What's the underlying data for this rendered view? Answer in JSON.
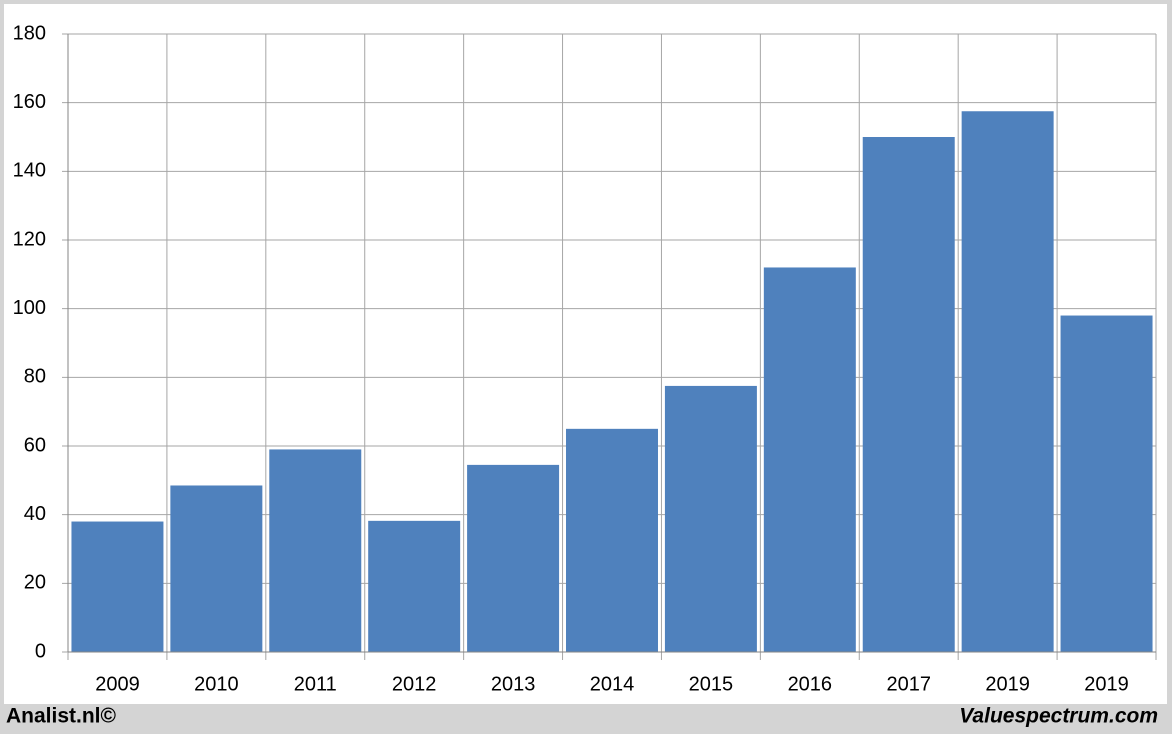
{
  "chart_data": {
    "type": "bar",
    "categories": [
      "2009",
      "2010",
      "2011",
      "2012",
      "2013",
      "2014",
      "2015",
      "2016",
      "2017",
      "2019",
      "2019"
    ],
    "values": [
      38,
      48.5,
      59,
      38.2,
      54.5,
      65,
      77.5,
      112,
      150,
      157.5,
      98
    ],
    "color": "#4f81bd",
    "ylim": [
      0,
      180
    ],
    "yticks": [
      0,
      20,
      40,
      60,
      80,
      100,
      120,
      140,
      160,
      180
    ],
    "grid": true,
    "footer_left": "Analist.nl©",
    "footer_right": "Valuespectrum.com"
  }
}
